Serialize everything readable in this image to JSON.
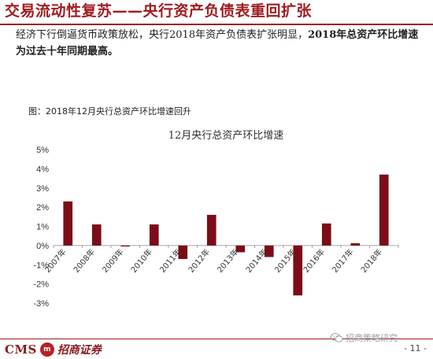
{
  "header": {
    "title": "交易流动性复苏——央行资产负债表重回扩张"
  },
  "summary": {
    "normal": "经济下行倒逼货币政策放松，央行2018年资产负债表扩张明显，",
    "emphasis": "2018年总资产环比增速为过去十年同期最高。"
  },
  "figure_label": "图：2018年12月央行总资产环比增速回升",
  "chart_data": {
    "type": "bar",
    "title": "12月央行总资产环比增速",
    "categories": [
      "2007年",
      "2008年",
      "2009年",
      "2010年",
      "2011年",
      "2012年",
      "2013年",
      "2014年",
      "2015年",
      "2016年",
      "2017年",
      "2018年"
    ],
    "values": [
      2.3,
      1.1,
      -0.05,
      1.1,
      -0.7,
      1.6,
      -0.35,
      -0.6,
      -2.6,
      1.15,
      0.12,
      3.7
    ],
    "y_unit": "%",
    "ylim": [
      -3,
      5
    ],
    "y_ticks": [
      "-3%",
      "-2%",
      "-1%",
      "0%",
      "1%",
      "2%",
      "3%",
      "4%",
      "5%"
    ],
    "bar_color": "#7b0c18",
    "grid": false,
    "legend": "none"
  },
  "footer": {
    "logo_cms": "CMS",
    "logo_mark": "m",
    "logo_cn": "招商证券",
    "watermark": "招商策略研究",
    "page": "- 11 -"
  },
  "colors": {
    "accent": "#a01c20",
    "bar": "#7b0c18"
  }
}
